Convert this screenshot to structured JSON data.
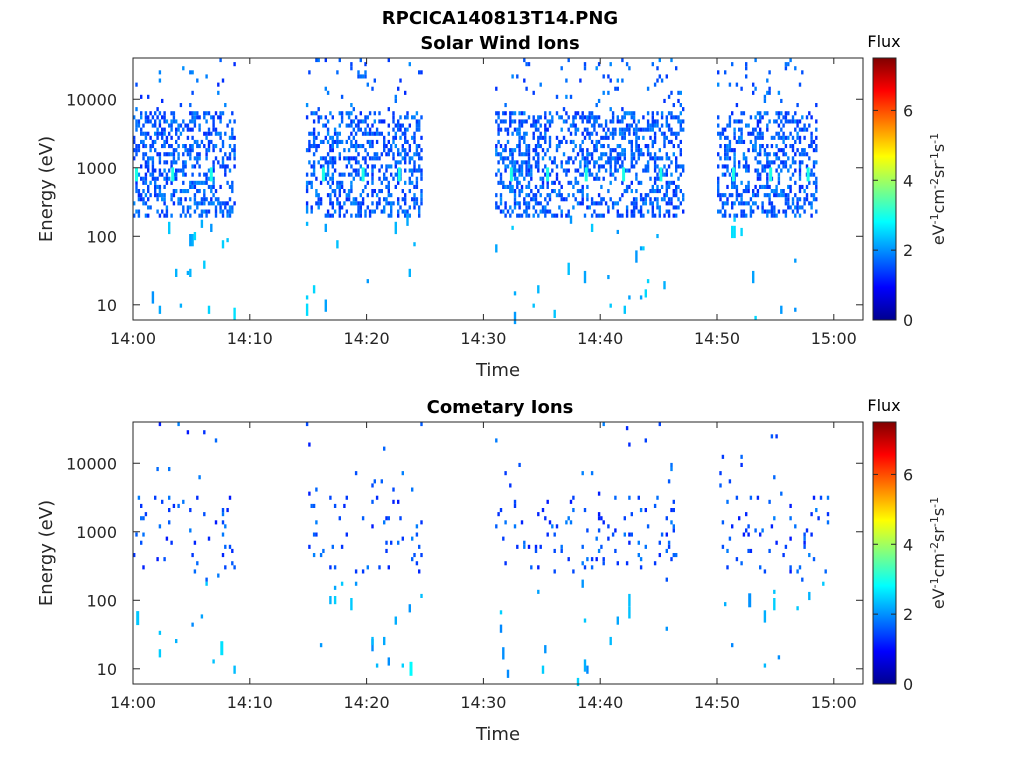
{
  "figure": {
    "title": "RPCICA140813T14.PNG"
  },
  "colorscale": {
    "stops": [
      "#00008f",
      "#0000ff",
      "#0080ff",
      "#00ffff",
      "#80ff80",
      "#ffff00",
      "#ff8000",
      "#ff0000",
      "#800000"
    ]
  },
  "chart_data": [
    {
      "type": "heatmap",
      "title": "Solar Wind Ions",
      "xlabel": "Time",
      "ylabel": "Energy (eV)",
      "x_tick_labels": [
        "14:00",
        "14:10",
        "14:20",
        "14:30",
        "14:40",
        "14:50",
        "15:00"
      ],
      "x_ticks_minutes": [
        0,
        10,
        20,
        30,
        40,
        50,
        60
      ],
      "xlim_minutes": [
        0,
        62.5
      ],
      "y_scale": "log",
      "y_tick_labels": [
        "10",
        "100",
        "1000",
        "10000"
      ],
      "y_ticks": [
        10,
        100,
        1000,
        10000
      ],
      "ylim": [
        6,
        40000
      ],
      "colorbar": {
        "label": "Flux",
        "units": "eV-1cm-2sr-1s-1",
        "tick_labels": [
          "0",
          "2",
          "4",
          "6"
        ],
        "range": [
          0,
          7.5
        ]
      },
      "data_intervals_minutes": [
        [
          0,
          8.7
        ],
        [
          14.8,
          24.7
        ],
        [
          31.0,
          47.2
        ],
        [
          50.0,
          58.5
        ]
      ],
      "band_peaks": [
        {
          "time_minutes": 0.3,
          "energy_eV": 800,
          "flux": 3.0
        },
        {
          "time_minutes": 3.4,
          "energy_eV": 800,
          "flux": 3.0
        },
        {
          "time_minutes": 6.7,
          "energy_eV": 800,
          "flux": 3.0
        },
        {
          "time_minutes": 16.3,
          "energy_eV": 800,
          "flux": 3.0
        },
        {
          "time_minutes": 19.7,
          "energy_eV": 800,
          "flux": 3.0
        },
        {
          "time_minutes": 22.8,
          "energy_eV": 800,
          "flux": 3.0
        },
        {
          "time_minutes": 32.4,
          "energy_eV": 800,
          "flux": 3.0
        },
        {
          "time_minutes": 35.5,
          "energy_eV": 800,
          "flux": 3.0
        },
        {
          "time_minutes": 38.8,
          "energy_eV": 800,
          "flux": 3.0
        },
        {
          "time_minutes": 42.0,
          "energy_eV": 800,
          "flux": 3.0
        },
        {
          "time_minutes": 45.2,
          "energy_eV": 800,
          "flux": 3.0
        },
        {
          "time_minutes": 51.4,
          "energy_eV": 800,
          "flux": 3.0
        },
        {
          "time_minutes": 54.6,
          "energy_eV": 800,
          "flux": 3.0
        },
        {
          "time_minutes": 57.8,
          "energy_eV": 800,
          "flux": 3.0
        }
      ],
      "typical_flux": 1.6
    },
    {
      "type": "heatmap",
      "title": "Cometary Ions",
      "xlabel": "Time",
      "ylabel": "Energy (eV)",
      "x_tick_labels": [
        "14:00",
        "14:10",
        "14:20",
        "14:30",
        "14:40",
        "14:50",
        "15:00"
      ],
      "x_ticks_minutes": [
        0,
        10,
        20,
        30,
        40,
        50,
        60
      ],
      "xlim_minutes": [
        0,
        62.5
      ],
      "y_scale": "log",
      "y_tick_labels": [
        "10",
        "100",
        "1000",
        "10000"
      ],
      "y_ticks": [
        10,
        100,
        1000,
        10000
      ],
      "ylim": [
        6,
        40000
      ],
      "colorbar": {
        "label": "Flux",
        "units": "eV-1cm-2sr-1s-1",
        "tick_labels": [
          "0",
          "2",
          "4",
          "6"
        ],
        "range": [
          0,
          7.5
        ]
      },
      "data_intervals_minutes": [
        [
          0,
          8.7
        ],
        [
          14.8,
          24.7
        ],
        [
          31.0,
          46.8
        ],
        [
          50.0,
          59.5
        ]
      ],
      "band_peaks": [
        {
          "time_minutes": 0.4,
          "energy_eV": 55,
          "flux": 2.4
        },
        {
          "time_minutes": 7.6,
          "energy_eV": 20,
          "flux": 2.6
        },
        {
          "time_minutes": 23.8,
          "energy_eV": 10,
          "flux": 2.8
        },
        {
          "time_minutes": 52.8,
          "energy_eV": 100,
          "flux": 2.0
        }
      ],
      "typical_flux": 1.5
    }
  ]
}
